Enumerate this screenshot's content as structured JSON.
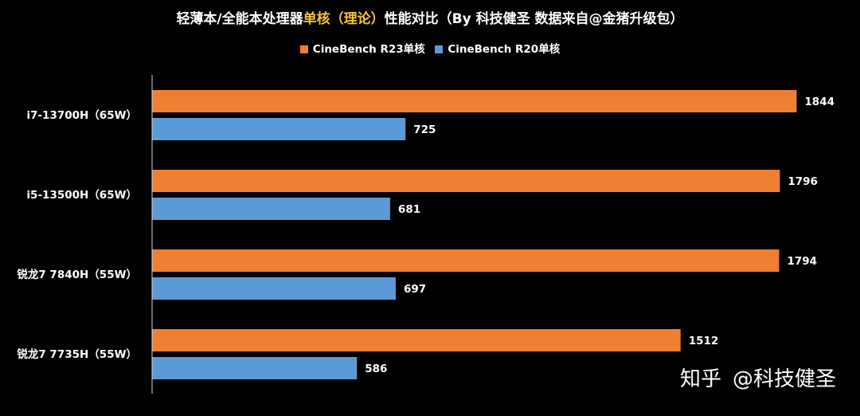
{
  "title": {
    "part1": "轻薄本/全能本处理器",
    "highlight": "单核（理论）",
    "part2": "性能对比（By 科技健圣 数据来自@金猪升级包）"
  },
  "watermark": {
    "brand": "知乎",
    "handle": "@科技健圣"
  },
  "colors": {
    "r23": "#ef7f33",
    "r20": "#5b9bd5",
    "background": "#000000"
  },
  "chart_data": {
    "type": "bar",
    "orientation": "horizontal",
    "categories": [
      "i7-13700H（65W）",
      "i5-13500H（65W）",
      "锐龙7 7840H（55W）",
      "锐龙7 7735H（55W）"
    ],
    "series": [
      {
        "name": "CineBench R23单核",
        "color": "#ef7f33",
        "values": [
          1844,
          1796,
          1794,
          1512
        ]
      },
      {
        "name": "CineBench R20单核",
        "color": "#5b9bd5",
        "values": [
          725,
          681,
          697,
          586
        ]
      }
    ],
    "xlim": [
      0,
      1900
    ],
    "grid": false,
    "legend_position": "top"
  }
}
